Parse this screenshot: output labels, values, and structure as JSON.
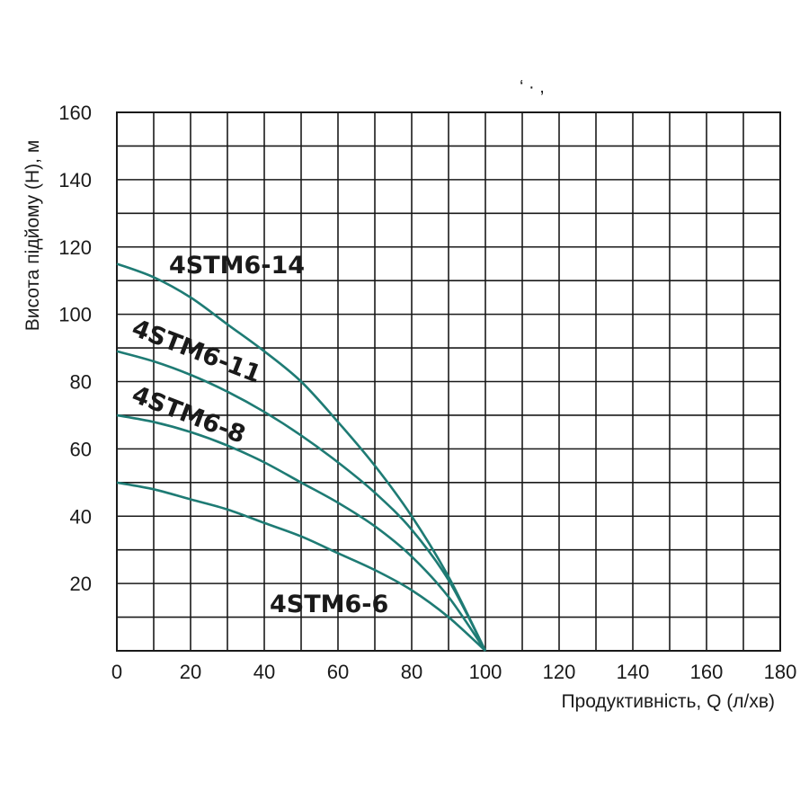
{
  "chart_data": {
    "type": "line",
    "title": "",
    "xlabel": "Продуктивність, Q (л/хв)",
    "ylabel": "Висота підйому (H), м",
    "xlim": [
      0,
      180
    ],
    "ylim": [
      0,
      160
    ],
    "x_ticks": [
      0,
      20,
      40,
      60,
      80,
      100,
      120,
      140,
      160,
      180
    ],
    "y_ticks": [
      20,
      40,
      60,
      80,
      100,
      120,
      140,
      160
    ],
    "grid": true,
    "curve_color": "#1e7b74",
    "series": [
      {
        "name": "4STM6-14",
        "x": [
          0,
          10,
          20,
          30,
          40,
          50,
          60,
          70,
          80,
          90,
          100
        ],
        "y": [
          115,
          111,
          105,
          97,
          89,
          80,
          68,
          55,
          40,
          22,
          0
        ]
      },
      {
        "name": "4STM6-11",
        "x": [
          0,
          10,
          20,
          30,
          40,
          50,
          60,
          70,
          80,
          90,
          100
        ],
        "y": [
          89,
          86,
          82,
          77,
          71,
          64,
          56,
          47,
          36,
          21,
          0
        ]
      },
      {
        "name": "4STM6-8",
        "x": [
          0,
          10,
          20,
          30,
          40,
          50,
          60,
          70,
          80,
          90,
          100
        ],
        "y": [
          70,
          68,
          65,
          61,
          56,
          50,
          44,
          37,
          28,
          16,
          0
        ]
      },
      {
        "name": "4STM6-6",
        "x": [
          0,
          10,
          20,
          30,
          40,
          50,
          60,
          70,
          80,
          90,
          100
        ],
        "y": [
          50,
          48,
          45,
          42,
          38,
          34,
          29,
          24,
          18,
          10,
          0
        ]
      }
    ]
  }
}
